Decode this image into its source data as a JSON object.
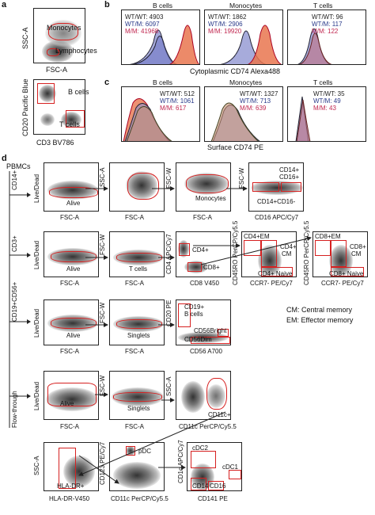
{
  "panel_a": {
    "letter": "a",
    "top_plot": {
      "xlabel": "FSC-A",
      "ylabel": "SSC-A",
      "gate1": "Monocytes",
      "gate2": "Lymphocytes"
    },
    "bottom_plot": {
      "xlabel": "CD3 BV786",
      "ylabel": "CD20 Pacific Blue",
      "gate1": "B cells",
      "gate2": "T cells"
    }
  },
  "panel_b": {
    "letter": "b",
    "xlabel": "Cytoplasmic  CD74 Alexa488",
    "plots": [
      {
        "title": "B cells",
        "wt": "WT/WT: 4903",
        "wtm": "WT/M: 6097",
        "mm": "M/M: 41968"
      },
      {
        "title": "Monocytes",
        "wt": "WT/WT: 1862",
        "wtm": "WT/M: 2906",
        "mm": "M/M: 19920"
      },
      {
        "title": "T cells",
        "wt": "WT/WT: 96",
        "wtm": "WT/M: 117",
        "mm": "M/M: 122"
      }
    ]
  },
  "panel_c": {
    "letter": "c",
    "xlabel": "Surface CD74 PE",
    "plots": [
      {
        "title": "B cells",
        "wt": "WT/WT: 512",
        "wtm": "WT/M: 1061",
        "mm": "M/M: 617"
      },
      {
        "title": "Monocytes",
        "wt": "WT/WT: 1327",
        "wtm": "WT/M: 713",
        "mm": "M/M: 639"
      },
      {
        "title": "T cells",
        "wt": "WT/WT: 35",
        "wtm": "WT/M: 49",
        "mm": "M/M: 43"
      }
    ]
  },
  "panel_d": {
    "letter": "d",
    "root": "PBMCs",
    "branches": [
      "CD14+",
      "CD3+",
      "CD19+CD56+",
      "Flow-through"
    ],
    "row1": {
      "p1": {
        "x": "FSC-A",
        "y": "Live/Dead",
        "gate": "Alive"
      },
      "p2": {
        "x": "FSC-A",
        "y": "SSC-A"
      },
      "p3": {
        "x": "FSC-A",
        "y": "FSC-W",
        "gate": "Monocytes"
      },
      "p4": {
        "x": "CD16 APC/Cy7",
        "y": "FSC-W",
        "g1": "CD14+",
        "g1b": "CD16+",
        "g2": "CD14+CD16-"
      }
    },
    "row2": {
      "p1": {
        "x": "FSC-A",
        "y": "Live/Dead",
        "gate": "Alive"
      },
      "p2": {
        "x": "FSC-A",
        "y": "FSC-W",
        "gate": "T cells"
      },
      "p3": {
        "x": "CD8 V450",
        "y": "CD4 APC/Cy7",
        "g1": "CD4+",
        "g2": "CD8+"
      },
      "p4": {
        "x": "CCR7- PE/Cy7",
        "y": "CD45RO PerCP/Cy5.5",
        "g1": "CD4+EM",
        "g2": "CD4+",
        "g2b": "CM",
        "g3": "CD4+ Naive"
      },
      "p5": {
        "x": "CCR7- PE/Cy7",
        "y": "CD45RO PerCP/Cy5.5",
        "g1": "CD8+EM",
        "g2": "CD8+",
        "g2b": "CM",
        "g3": "CD8+ Naive"
      }
    },
    "row3": {
      "p1": {
        "x": "FSC-A",
        "y": "Live/Dead",
        "gate": "Alive"
      },
      "p2": {
        "x": "FSC-A",
        "y": "FSC-W",
        "gate": "Singlets"
      },
      "p3": {
        "x": "CD56 A700",
        "y": "CD20 PE",
        "g1": "CD19+",
        "g1b": "B cells",
        "g2": "CD56Bright",
        "g3": "CD56Dim"
      }
    },
    "row4": {
      "p1": {
        "x": "FSC-A",
        "y": "Live/Dead",
        "gate": "Alive"
      },
      "p2": {
        "x": "FSC-A",
        "y": "FSC-W",
        "gate": "Singlets"
      },
      "p3": {
        "x": "CD11c PerCP/Cy5.5",
        "y": "SSC-A",
        "gate": "CD11c+"
      }
    },
    "row5": {
      "p1": {
        "x": "HLA-DR-V450",
        "y": "SSC-A",
        "gate": "HLA-DR+"
      },
      "p2": {
        "x": "CD11c PerCP/Cy5.5",
        "y": "CD123 PE/Cy7",
        "gate": "pDC"
      },
      "p3": {
        "x": "CD141 PE",
        "y": "CD1c APC/Cy7",
        "g1": "cDC2",
        "g2": "cDC1",
        "g3": "CD14",
        "g4": "CD16"
      }
    },
    "legend": [
      "CM: Central memory",
      "EM: Effector memory"
    ]
  }
}
